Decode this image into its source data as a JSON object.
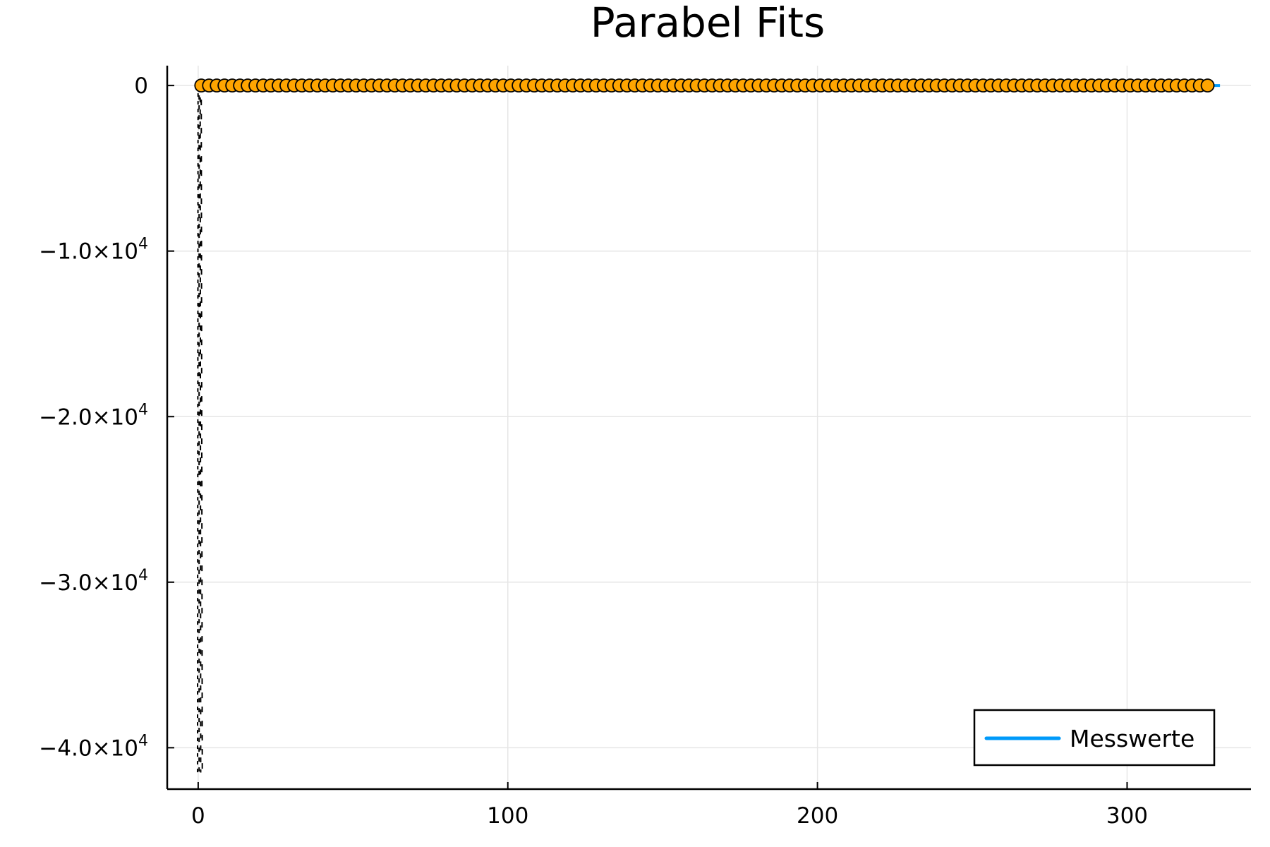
{
  "chart_data": {
    "type": "scatter",
    "title": "Parabel Fits",
    "xlabel": "",
    "ylabel": "",
    "xlim": [
      -10,
      340
    ],
    "ylim": [
      -42500,
      1200
    ],
    "grid": true,
    "legend_position": "bottom-right",
    "x_ticks": [
      {
        "value": 0,
        "label": "0"
      },
      {
        "value": 100,
        "label": "100"
      },
      {
        "value": 200,
        "label": "200"
      },
      {
        "value": 300,
        "label": "300"
      }
    ],
    "y_ticks": [
      {
        "value": 0,
        "mantissa": "0",
        "exponent": ""
      },
      {
        "value": -10000,
        "mantissa": "−1.0×10",
        "exponent": "4"
      },
      {
        "value": -20000,
        "mantissa": "−2.0×10",
        "exponent": "4"
      },
      {
        "value": -30000,
        "mantissa": "−3.0×10",
        "exponent": "4"
      },
      {
        "value": -40000,
        "mantissa": "−4.0×10",
        "exponent": "4"
      }
    ],
    "series": [
      {
        "name": "Messwerte",
        "kind": "line",
        "color": "#009AFA",
        "x": [
          0,
          330
        ],
        "y": [
          0,
          0
        ]
      },
      {
        "kind": "markers",
        "color": "#FFA500",
        "edge_color": "#000000",
        "x_start": 1,
        "x_end": 328,
        "x_step": 2.5,
        "y": 0
      },
      {
        "kind": "fit-curves",
        "color": "#000000",
        "style": "dotted",
        "x_near": 0.3,
        "y_min": -41500,
        "y_max": 0
      }
    ]
  },
  "colors": {
    "axis": "#000000",
    "grid": "#e6e6e6",
    "background": "#ffffff"
  }
}
